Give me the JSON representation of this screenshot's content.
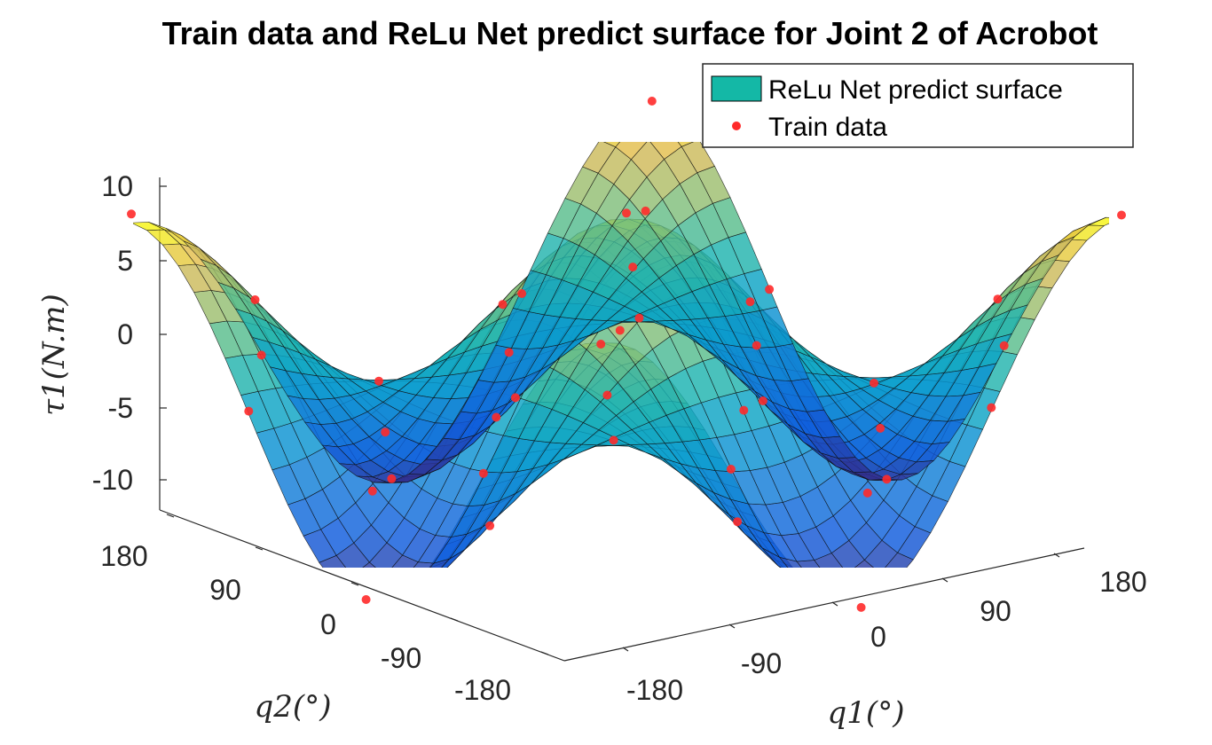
{
  "chart_data": {
    "type": "surface3d",
    "title": "Train data and ReLu Net predict surface for Joint 2 of Acrobot",
    "xlabel": "q1(°)",
    "ylabel": "q2(°)",
    "zlabel": "τ1(N.m)",
    "x_ticks": [
      "-180",
      "-90",
      "0",
      "90",
      "180"
    ],
    "y_ticks": [
      "-180",
      "-90",
      "0",
      "90",
      "180"
    ],
    "z_ticks": [
      "10",
      "5",
      "0",
      "-5",
      "-10"
    ],
    "xlim": [
      -180,
      180
    ],
    "ylim": [
      -180,
      180
    ],
    "zlim": [
      -12,
      12
    ],
    "grid_resolution": 30,
    "surface_model": "tau = 11 * cos(q1) * cos(q2)",
    "legend": {
      "location": "top-right",
      "entries": [
        {
          "label": "ReLu Net predict surface",
          "marker": "surface",
          "color": "#14b8a6"
        },
        {
          "label": "Train data",
          "marker": "dot",
          "color": "#ff2a2a"
        }
      ]
    },
    "train_data": [
      {
        "q1": -180,
        "q2": -180,
        "tau": 11.0
      },
      {
        "q1": -180,
        "q2": -90,
        "tau": 0.1
      },
      {
        "q1": -180,
        "q2": 0,
        "tau": -10.6
      },
      {
        "q1": -180,
        "q2": 90,
        "tau": 0.2
      },
      {
        "q1": -180,
        "q2": 180,
        "tau": 11.6
      },
      {
        "q1": -135,
        "q2": -135,
        "tau": 5.4
      },
      {
        "q1": -135,
        "q2": -45,
        "tau": -5.6
      },
      {
        "q1": -135,
        "q2": 45,
        "tau": -5.3
      },
      {
        "q1": -135,
        "q2": 135,
        "tau": 5.7
      },
      {
        "q1": -90,
        "q2": -180,
        "tau": 0.3
      },
      {
        "q1": -90,
        "q2": -90,
        "tau": 0.2
      },
      {
        "q1": -90,
        "q2": 0,
        "tau": -0.3
      },
      {
        "q1": -90,
        "q2": 90,
        "tau": 0.1
      },
      {
        "q1": -90,
        "q2": 180,
        "tau": -0.2
      },
      {
        "q1": -45,
        "q2": -135,
        "tau": -5.4
      },
      {
        "q1": -45,
        "q2": -45,
        "tau": 5.6
      },
      {
        "q1": -45,
        "q2": 45,
        "tau": 5.3
      },
      {
        "q1": -45,
        "q2": 135,
        "tau": -5.5
      },
      {
        "q1": 0,
        "q2": -180,
        "tau": -11.3
      },
      {
        "q1": 0,
        "q2": -90,
        "tau": 0.1
      },
      {
        "q1": 0,
        "q2": 0,
        "tau": 11.5
      },
      {
        "q1": 0,
        "q2": 90,
        "tau": -0.1
      },
      {
        "q1": 0,
        "q2": 180,
        "tau": -10.8
      },
      {
        "q1": 45,
        "q2": -135,
        "tau": -5.6
      },
      {
        "q1": 45,
        "q2": -45,
        "tau": 5.4
      },
      {
        "q1": 45,
        "q2": 45,
        "tau": 5.7
      },
      {
        "q1": 45,
        "q2": 135,
        "tau": -5.3
      },
      {
        "q1": 90,
        "q2": -180,
        "tau": 0.2
      },
      {
        "q1": 90,
        "q2": -90,
        "tau": -0.2
      },
      {
        "q1": 90,
        "q2": 0,
        "tau": 0.3
      },
      {
        "q1": 90,
        "q2": 90,
        "tau": 0.1
      },
      {
        "q1": 90,
        "q2": 180,
        "tau": -0.3
      },
      {
        "q1": 135,
        "q2": -135,
        "tau": 5.5
      },
      {
        "q1": 135,
        "q2": -45,
        "tau": -5.4
      },
      {
        "q1": 135,
        "q2": 45,
        "tau": -5.6
      },
      {
        "q1": 135,
        "q2": 135,
        "tau": 5.3
      },
      {
        "q1": 180,
        "q2": -180,
        "tau": 11.2
      },
      {
        "q1": 180,
        "q2": -90,
        "tau": 0.2
      },
      {
        "q1": 180,
        "q2": 0,
        "tau": -11.0
      },
      {
        "q1": 180,
        "q2": 90,
        "tau": -0.1
      },
      {
        "q1": 180,
        "q2": 180,
        "tau": 10.7
      }
    ]
  }
}
